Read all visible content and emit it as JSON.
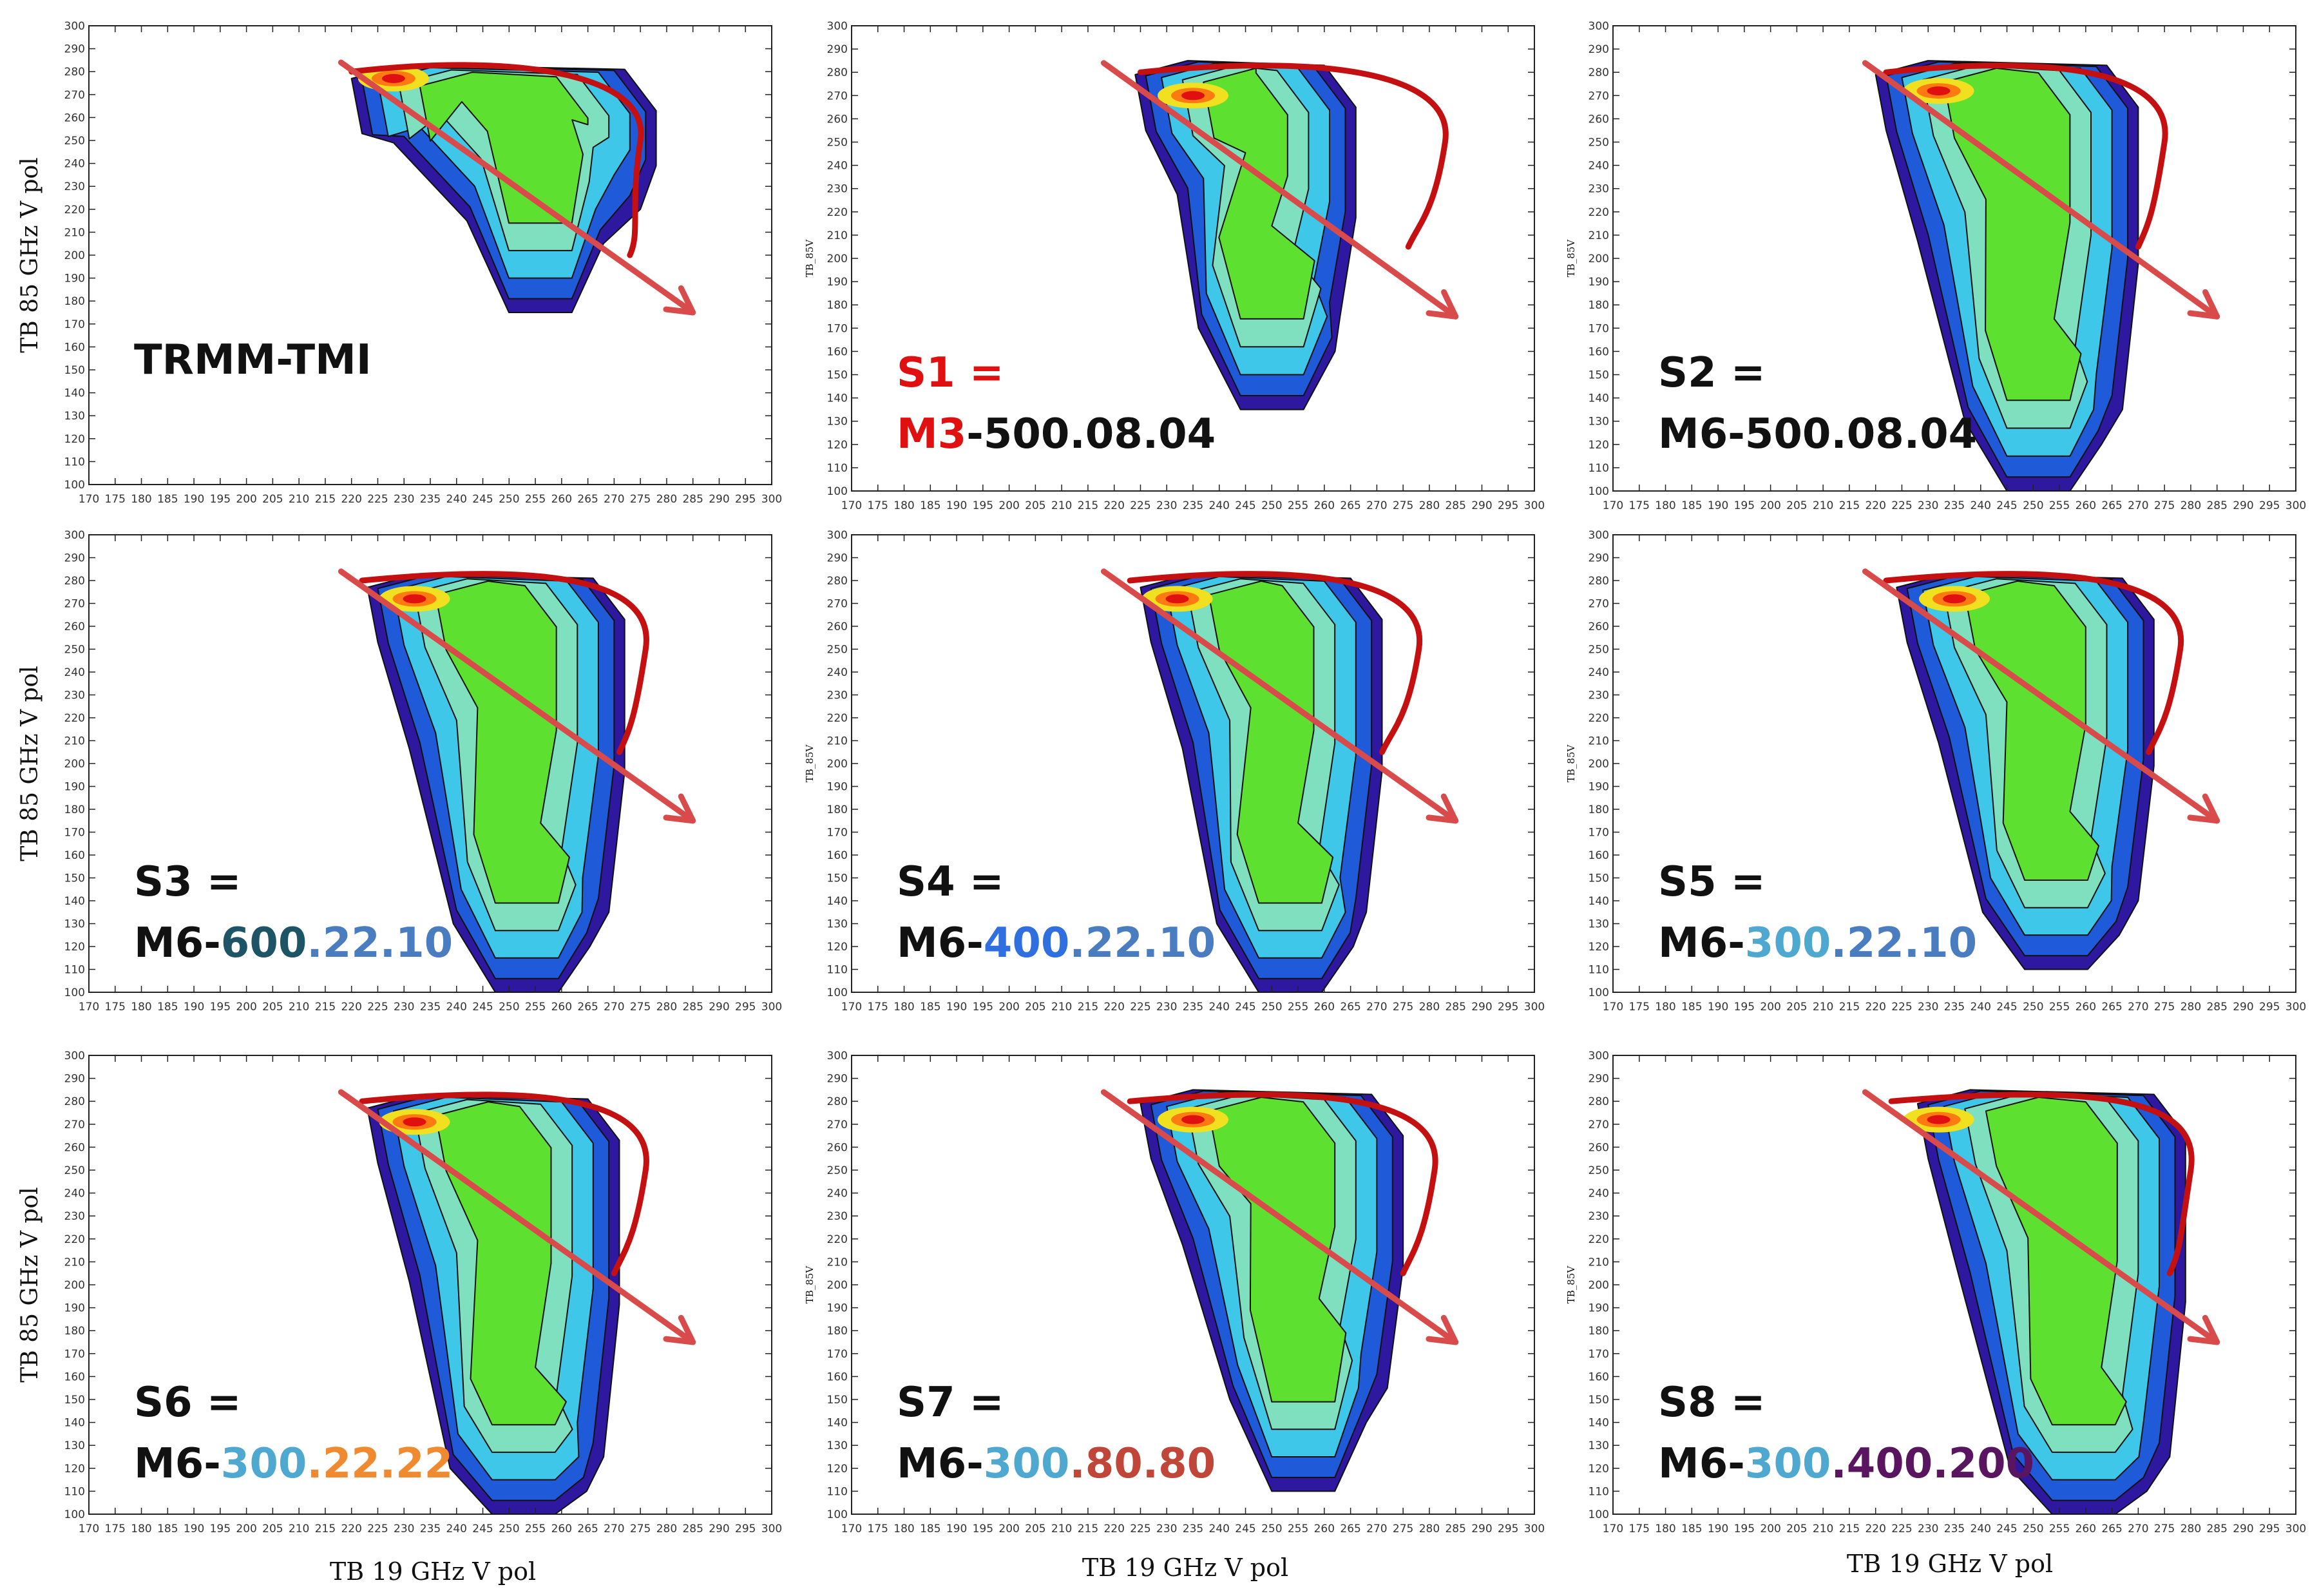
{
  "figure": {
    "bottom_xlabels": [
      "TB 19 GHz V pol",
      "TB 19 GHz V pol",
      "TB 19 GHz V pol"
    ]
  },
  "colors": {
    "black": "#111111",
    "red": "#e01010",
    "dark_teal": "#1d5566",
    "steel_blue": "#4a7cc0",
    "bright_blue": "#2f6fe0",
    "light_blue": "#4fa8d0",
    "orange": "#f08a30",
    "brown_red": "#c0463a",
    "purple": "#5a1560",
    "arrow": "#d94a4a",
    "envelope": "#c41010"
  },
  "chart_data": [
    {
      "type": "heatmap",
      "id": "TRMM-TMI",
      "title_lines": [
        [
          {
            "text": "TRMM-TMI",
            "color": "black"
          }
        ]
      ],
      "ylabel": "TB 85 GHz V pol",
      "xlabel": "",
      "xlim": [
        170,
        300
      ],
      "ylim": [
        100,
        300
      ],
      "xticks": [
        170,
        175,
        180,
        185,
        190,
        195,
        200,
        205,
        210,
        215,
        220,
        225,
        230,
        235,
        240,
        245,
        250,
        255,
        260,
        265,
        270,
        275,
        280,
        285,
        290,
        295,
        300
      ],
      "yticks": [
        100,
        110,
        120,
        130,
        140,
        150,
        160,
        170,
        180,
        190,
        200,
        210,
        220,
        230,
        240,
        250,
        260,
        270,
        280,
        290,
        300
      ],
      "region": {
        "xmin": 220,
        "xmax": 278,
        "ymin": 195,
        "ymax": 283,
        "ymin_tail": 165
      },
      "peak": [
        228,
        277
      ],
      "arrow": [
        [
          218,
          284
        ],
        [
          285,
          175
        ]
      ],
      "envelope": [
        [
          220,
          280
        ],
        [
          250,
          285
        ],
        [
          275,
          250
        ],
        [
          273,
          200
        ]
      ]
    },
    {
      "type": "heatmap",
      "id": "S1",
      "title_lines": [
        [
          {
            "text": "S1 =",
            "color": "red"
          }
        ],
        [
          {
            "text": "M3",
            "color": "red"
          },
          {
            "text": "-500.08.04",
            "color": "black"
          }
        ]
      ],
      "ylabel": "TB_85V",
      "xlabel": "",
      "xlim": [
        170,
        300
      ],
      "ylim": [
        100,
        300
      ],
      "xticks": [
        170,
        175,
        180,
        185,
        190,
        195,
        200,
        205,
        210,
        215,
        220,
        225,
        230,
        235,
        240,
        245,
        250,
        255,
        260,
        265,
        270,
        275,
        280,
        285,
        290,
        295,
        300
      ],
      "yticks": [
        100,
        110,
        120,
        130,
        140,
        150,
        160,
        170,
        180,
        190,
        200,
        210,
        220,
        230,
        240,
        250,
        260,
        270,
        280,
        290,
        300
      ],
      "region": {
        "xmin": 224,
        "xmax": 266,
        "ymin": 150,
        "ymax": 285,
        "ymin_tail": 135
      },
      "peak": [
        235,
        270
      ],
      "arrow": [
        [
          218,
          284
        ],
        [
          285,
          175
        ]
      ],
      "envelope": [
        [
          225,
          280
        ],
        [
          260,
          285
        ],
        [
          283,
          250
        ],
        [
          276,
          205
        ]
      ]
    },
    {
      "type": "heatmap",
      "id": "S2",
      "title_lines": [
        [
          {
            "text": "S2 =",
            "color": "black"
          }
        ],
        [
          {
            "text": "M6-500.08.04",
            "color": "black"
          }
        ]
      ],
      "ylabel": "TB_85V",
      "xlabel": "",
      "xlim": [
        170,
        300
      ],
      "ylim": [
        100,
        300
      ],
      "xticks": [
        170,
        175,
        180,
        185,
        190,
        195,
        200,
        205,
        210,
        215,
        220,
        225,
        230,
        235,
        240,
        245,
        250,
        255,
        260,
        265,
        270,
        275,
        280,
        285,
        290,
        295,
        300
      ],
      "yticks": [
        100,
        110,
        120,
        130,
        140,
        150,
        160,
        170,
        180,
        190,
        200,
        210,
        220,
        230,
        240,
        250,
        260,
        270,
        280,
        290,
        300
      ],
      "region": {
        "xmin": 220,
        "xmax": 270,
        "ymin": 110,
        "ymax": 285,
        "ymin_tail": 100
      },
      "peak": [
        232,
        272
      ],
      "arrow": [
        [
          218,
          284
        ],
        [
          285,
          175
        ]
      ],
      "envelope": [
        [
          222,
          280
        ],
        [
          255,
          285
        ],
        [
          275,
          250
        ],
        [
          270,
          205
        ]
      ]
    },
    {
      "type": "heatmap",
      "id": "S3",
      "title_lines": [
        [
          {
            "text": "S3 =",
            "color": "black"
          }
        ],
        [
          {
            "text": "M6-",
            "color": "black"
          },
          {
            "text": "600",
            "color": "dark_teal"
          },
          {
            "text": ".22.10",
            "color": "steel_blue"
          }
        ]
      ],
      "ylabel": "TB 85 GHz V pol",
      "xlabel": "",
      "xlim": [
        170,
        300
      ],
      "ylim": [
        100,
        300
      ],
      "xticks": [
        170,
        175,
        180,
        185,
        190,
        195,
        200,
        205,
        210,
        215,
        220,
        225,
        230,
        235,
        240,
        245,
        250,
        255,
        260,
        265,
        270,
        275,
        280,
        285,
        290,
        295,
        300
      ],
      "yticks": [
        100,
        110,
        120,
        130,
        140,
        150,
        160,
        170,
        180,
        190,
        200,
        210,
        220,
        230,
        240,
        250,
        260,
        270,
        280,
        290,
        300
      ],
      "region": {
        "xmin": 223,
        "xmax": 272,
        "ymin": 110,
        "ymax": 283,
        "ymin_tail": 100
      },
      "peak": [
        232,
        272
      ],
      "arrow": [
        [
          218,
          284
        ],
        [
          285,
          175
        ]
      ],
      "envelope": [
        [
          222,
          280
        ],
        [
          258,
          285
        ],
        [
          276,
          250
        ],
        [
          271,
          205
        ]
      ]
    },
    {
      "type": "heatmap",
      "id": "S4",
      "title_lines": [
        [
          {
            "text": "S4 =",
            "color": "black"
          }
        ],
        [
          {
            "text": "M6-",
            "color": "black"
          },
          {
            "text": "400",
            "color": "bright_blue"
          },
          {
            "text": ".22.10",
            "color": "steel_blue"
          }
        ]
      ],
      "ylabel": "TB_85V",
      "xlabel": "",
      "xlim": [
        170,
        300
      ],
      "ylim": [
        100,
        300
      ],
      "xticks": [
        170,
        175,
        180,
        185,
        190,
        195,
        200,
        205,
        210,
        215,
        220,
        225,
        230,
        235,
        240,
        245,
        250,
        255,
        260,
        265,
        270,
        275,
        280,
        285,
        290,
        295,
        300
      ],
      "yticks": [
        100,
        110,
        120,
        130,
        140,
        150,
        160,
        170,
        180,
        190,
        200,
        210,
        220,
        230,
        240,
        250,
        260,
        270,
        280,
        290,
        300
      ],
      "region": {
        "xmin": 225,
        "xmax": 271,
        "ymin": 110,
        "ymax": 283,
        "ymin_tail": 100
      },
      "peak": [
        232,
        272
      ],
      "arrow": [
        [
          218,
          284
        ],
        [
          285,
          175
        ]
      ],
      "envelope": [
        [
          223,
          280
        ],
        [
          258,
          285
        ],
        [
          278,
          250
        ],
        [
          271,
          205
        ]
      ]
    },
    {
      "type": "heatmap",
      "id": "S5",
      "title_lines": [
        [
          {
            "text": "S5 =",
            "color": "black"
          }
        ],
        [
          {
            "text": "M6-",
            "color": "black"
          },
          {
            "text": "300",
            "color": "light_blue"
          },
          {
            "text": ".22.10",
            "color": "steel_blue"
          }
        ]
      ],
      "ylabel": "TB_85V",
      "xlabel": "",
      "xlim": [
        170,
        300
      ],
      "ylim": [
        100,
        300
      ],
      "xticks": [
        170,
        175,
        180,
        185,
        190,
        195,
        200,
        205,
        210,
        215,
        220,
        225,
        230,
        235,
        240,
        245,
        250,
        255,
        260,
        265,
        270,
        275,
        280,
        285,
        290,
        295,
        300
      ],
      "yticks": [
        100,
        110,
        120,
        130,
        140,
        150,
        160,
        170,
        180,
        190,
        200,
        210,
        220,
        230,
        240,
        250,
        260,
        270,
        280,
        290,
        300
      ],
      "region": {
        "xmin": 224,
        "xmax": 273,
        "ymin": 115,
        "ymax": 283,
        "ymin_tail": 110
      },
      "peak": [
        235,
        272
      ],
      "arrow": [
        [
          218,
          284
        ],
        [
          285,
          175
        ]
      ],
      "envelope": [
        [
          222,
          280
        ],
        [
          258,
          285
        ],
        [
          278,
          250
        ],
        [
          272,
          205
        ]
      ]
    },
    {
      "type": "heatmap",
      "id": "S6",
      "title_lines": [
        [
          {
            "text": "S6 =",
            "color": "black"
          }
        ],
        [
          {
            "text": "M6-",
            "color": "black"
          },
          {
            "text": "300",
            "color": "light_blue"
          },
          {
            "text": ".22.22",
            "color": "orange"
          }
        ]
      ],
      "ylabel": "TB 85 GHz V pol",
      "xlabel": "TB 19 GHz V pol",
      "xlim": [
        170,
        300
      ],
      "ylim": [
        100,
        300
      ],
      "xticks": [
        170,
        175,
        180,
        185,
        190,
        195,
        200,
        205,
        210,
        215,
        220,
        225,
        230,
        235,
        240,
        245,
        250,
        255,
        260,
        265,
        270,
        275,
        280,
        285,
        290,
        295,
        300
      ],
      "yticks": [
        100,
        110,
        120,
        130,
        140,
        150,
        160,
        170,
        180,
        190,
        200,
        210,
        220,
        230,
        240,
        250,
        260,
        270,
        280,
        290,
        300
      ],
      "region": {
        "xmin": 223,
        "xmax": 271,
        "ymin": 100,
        "ymax": 283,
        "ymin_tail": 100
      },
      "peak": [
        232,
        271
      ],
      "arrow": [
        [
          218,
          284
        ],
        [
          285,
          175
        ]
      ],
      "envelope": [
        [
          222,
          280
        ],
        [
          258,
          285
        ],
        [
          276,
          250
        ],
        [
          270,
          205
        ]
      ]
    },
    {
      "type": "heatmap",
      "id": "S7",
      "title_lines": [
        [
          {
            "text": "S7 =",
            "color": "black"
          }
        ],
        [
          {
            "text": "M6-",
            "color": "black"
          },
          {
            "text": "300",
            "color": "light_blue"
          },
          {
            "text": ".80.80",
            "color": "brown_red"
          }
        ]
      ],
      "ylabel": "TB_85V",
      "xlabel": "TB 19 GHz V pol",
      "xlim": [
        170,
        300
      ],
      "ylim": [
        100,
        300
      ],
      "xticks": [
        170,
        175,
        180,
        185,
        190,
        195,
        200,
        205,
        210,
        215,
        220,
        225,
        230,
        235,
        240,
        245,
        250,
        255,
        260,
        265,
        270,
        275,
        280,
        285,
        290,
        295,
        300
      ],
      "yticks": [
        100,
        110,
        120,
        130,
        140,
        150,
        160,
        170,
        180,
        190,
        200,
        210,
        220,
        230,
        240,
        250,
        260,
        270,
        280,
        290,
        300
      ],
      "region": {
        "xmin": 225,
        "xmax": 275,
        "ymin": 130,
        "ymax": 285,
        "ymin_tail": 100
      },
      "peak": [
        235,
        272
      ],
      "arrow": [
        [
          218,
          284
        ],
        [
          285,
          175
        ]
      ],
      "envelope": [
        [
          223,
          280
        ],
        [
          262,
          285
        ],
        [
          281,
          250
        ],
        [
          275,
          205
        ]
      ]
    },
    {
      "type": "heatmap",
      "id": "S8",
      "title_lines": [
        [
          {
            "text": "S8 =",
            "color": "black"
          }
        ],
        [
          {
            "text": "M6-",
            "color": "black"
          },
          {
            "text": "300",
            "color": "light_blue"
          },
          {
            "text": ".400.200",
            "color": "purple"
          }
        ]
      ],
      "ylabel": "TB_85V",
      "xlabel": "TB 19 GHz V pol",
      "xlim": [
        170,
        300
      ],
      "ylim": [
        100,
        300
      ],
      "xticks": [
        170,
        175,
        180,
        185,
        190,
        195,
        200,
        205,
        210,
        215,
        220,
        225,
        230,
        235,
        240,
        245,
        250,
        255,
        260,
        265,
        270,
        275,
        280,
        285,
        290,
        295,
        300
      ],
      "yticks": [
        100,
        110,
        120,
        130,
        140,
        150,
        160,
        170,
        180,
        190,
        200,
        210,
        220,
        230,
        240,
        250,
        260,
        270,
        280,
        290,
        300
      ],
      "region": {
        "xmin": 228,
        "xmax": 279,
        "ymin": 100,
        "ymax": 285,
        "ymin_tail": 100
      },
      "peak": [
        232,
        272
      ],
      "arrow": [
        [
          218,
          284
        ],
        [
          285,
          175
        ]
      ],
      "envelope": [
        [
          223,
          280
        ],
        [
          265,
          285
        ],
        [
          280,
          250
        ],
        [
          276,
          205
        ]
      ]
    }
  ]
}
